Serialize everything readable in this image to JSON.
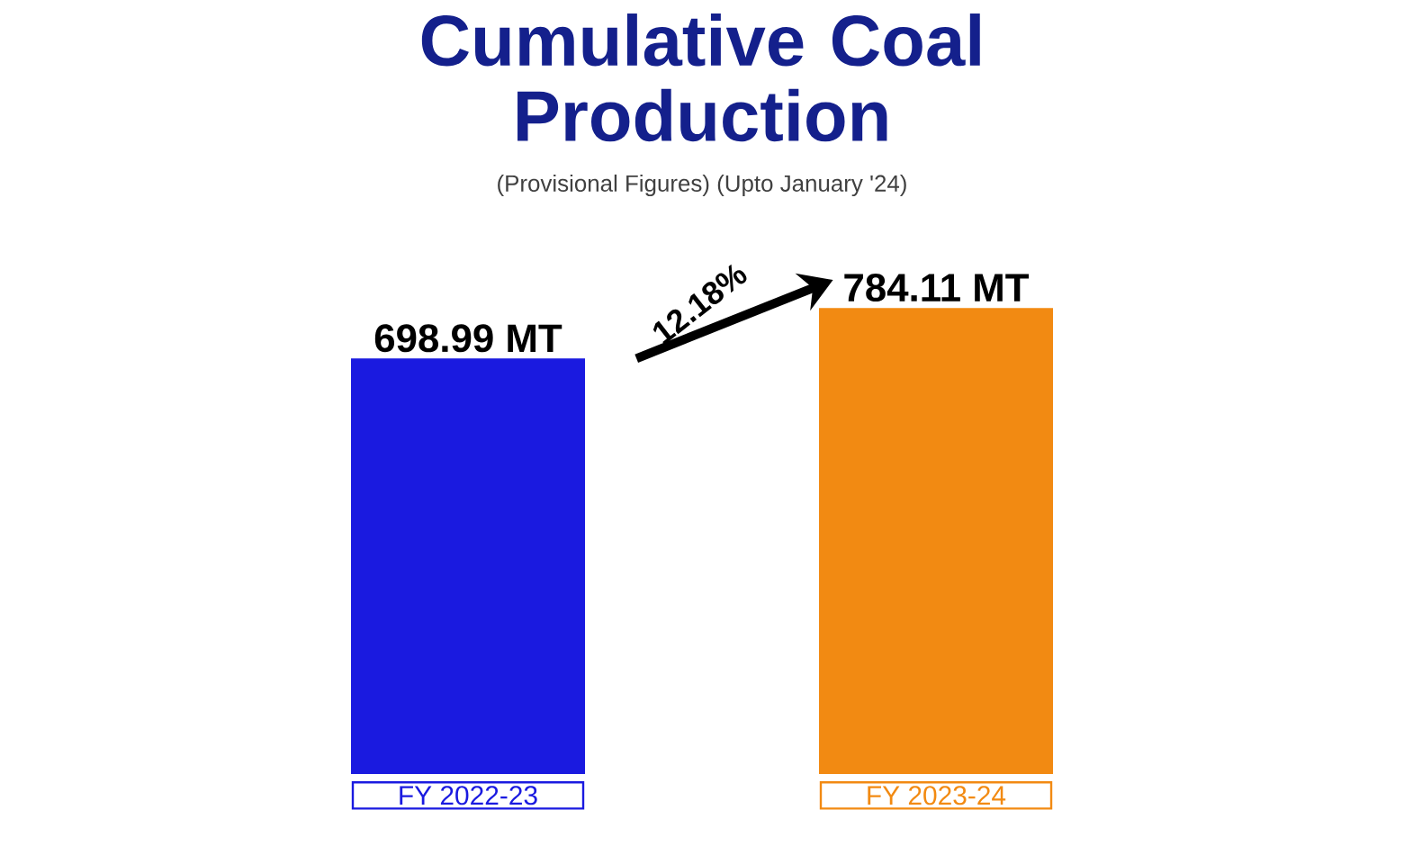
{
  "chart_data": {
    "type": "bar",
    "title": "Cumulative Coal Production",
    "subtitle": "(Provisional Figures) (Upto January '24)",
    "categories": [
      "FY 2022-23",
      "FY 2023-24"
    ],
    "values": [
      698.99,
      784.11
    ],
    "value_labels": [
      "698.99 MT",
      "784.11 MT"
    ],
    "colors": [
      "#1a1ae0",
      "#f28a12"
    ],
    "annotations": [
      "12.18%"
    ]
  }
}
